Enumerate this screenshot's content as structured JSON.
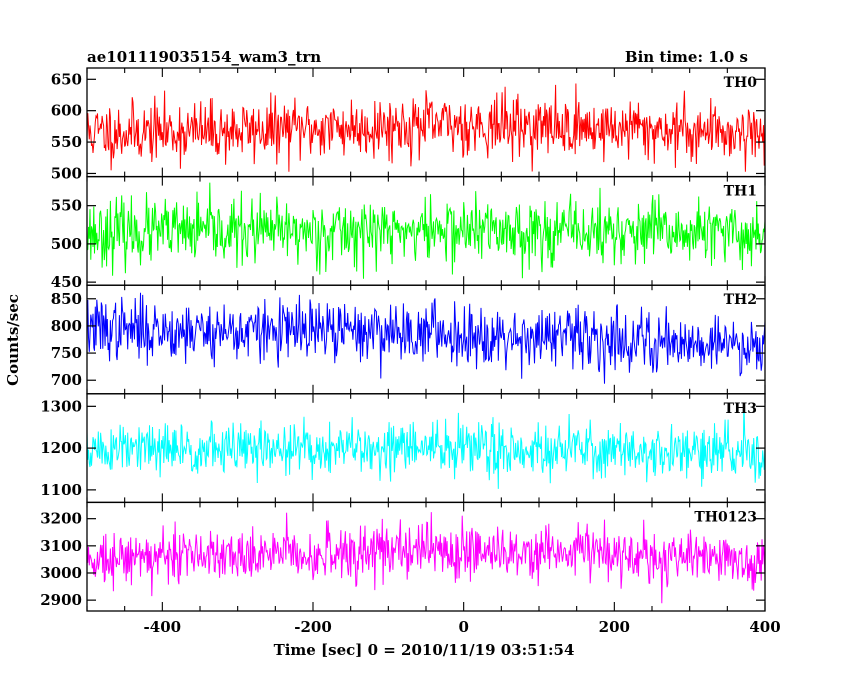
{
  "header": {
    "title": "ae101119035154_wam3_trn",
    "bin_time": "Bin time: 1.0 s"
  },
  "axes": {
    "ylabel": "Counts/sec",
    "xlabel": "Time [sec] 0 = 2010/11/19 03:51:54"
  },
  "chart_data": {
    "type": "line",
    "title": "ae101119035154_wam3_trn",
    "subtitle": "Bin time: 1.0 s",
    "xlabel": "Time [sec] 0 = 2010/11/19 03:51:54",
    "ylabel": "Counts/sec",
    "xlim": [
      -500,
      400
    ],
    "xticks": [
      -400,
      -200,
      0,
      200,
      400
    ],
    "x_start": -500,
    "x_step": 1,
    "x_end": 400,
    "grid": false,
    "panels": [
      {
        "name": "TH0",
        "color": "#ff0000",
        "ylim": [
          495,
          668
        ],
        "yticks": [
          500,
          550,
          600,
          650
        ],
        "mean_profile": [
          [
            -500,
            565
          ],
          [
            -300,
            568
          ],
          [
            -100,
            575
          ],
          [
            0,
            578
          ],
          [
            200,
            572
          ],
          [
            400,
            565
          ]
        ],
        "noise_sd": 24,
        "seed": 11
      },
      {
        "name": "TH1",
        "color": "#00ff00",
        "ylim": [
          446,
          588
        ],
        "yticks": [
          450,
          500,
          550
        ],
        "mean_profile": [
          [
            -500,
            515
          ],
          [
            -200,
            516
          ],
          [
            0,
            518
          ],
          [
            200,
            515
          ],
          [
            400,
            512
          ]
        ],
        "noise_sd": 21,
        "seed": 23
      },
      {
        "name": "TH2",
        "color": "#0000ff",
        "ylim": [
          675,
          875
        ],
        "yticks": [
          700,
          750,
          800,
          850
        ],
        "mean_profile": [
          [
            -500,
            795
          ],
          [
            -300,
            790
          ],
          [
            -100,
            790
          ],
          [
            100,
            780
          ],
          [
            300,
            770
          ],
          [
            400,
            765
          ]
        ],
        "noise_sd": 28,
        "seed": 37
      },
      {
        "name": "TH3",
        "color": "#00ffff",
        "ylim": [
          1070,
          1330
        ],
        "yticks": [
          1100,
          1200,
          1300
        ],
        "mean_profile": [
          [
            -500,
            1195
          ],
          [
            -200,
            1198
          ],
          [
            0,
            1200
          ],
          [
            200,
            1195
          ],
          [
            400,
            1185
          ]
        ],
        "noise_sd": 32,
        "seed": 51
      },
      {
        "name": "TH0123",
        "color": "#ff00ff",
        "ylim": [
          2860,
          3260
        ],
        "yticks": [
          2900,
          3000,
          3100,
          3200
        ],
        "mean_profile": [
          [
            -500,
            3060
          ],
          [
            -200,
            3070
          ],
          [
            0,
            3090
          ],
          [
            200,
            3070
          ],
          [
            400,
            3040
          ]
        ],
        "noise_sd": 50,
        "seed": 73
      }
    ]
  }
}
